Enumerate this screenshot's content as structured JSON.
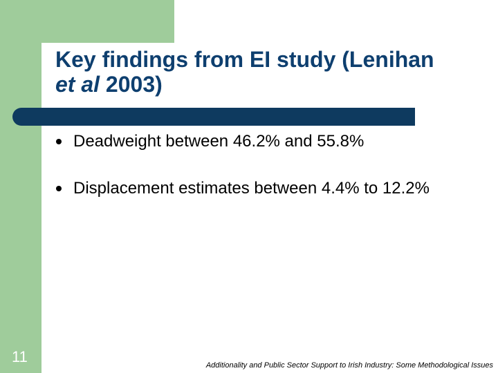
{
  "slide": {
    "title_line1": "Key findings from EI study (Lenihan",
    "title_italic": "et al",
    "title_rest": " 2003)",
    "bullets": [
      {
        "text": "Deadweight between 46.2% and 55.8%"
      },
      {
        "text": "Displacement estimates between 4.4% to 12.2%"
      }
    ],
    "slide_number": "11",
    "footer": "Additionality and Public Sector Support to Irish Industry: Some Methodological Issues"
  },
  "colors": {
    "frame_green": "#9fcc9b",
    "title_blue": "#0e3f6f",
    "rule_navy": "#0e3a5f"
  }
}
